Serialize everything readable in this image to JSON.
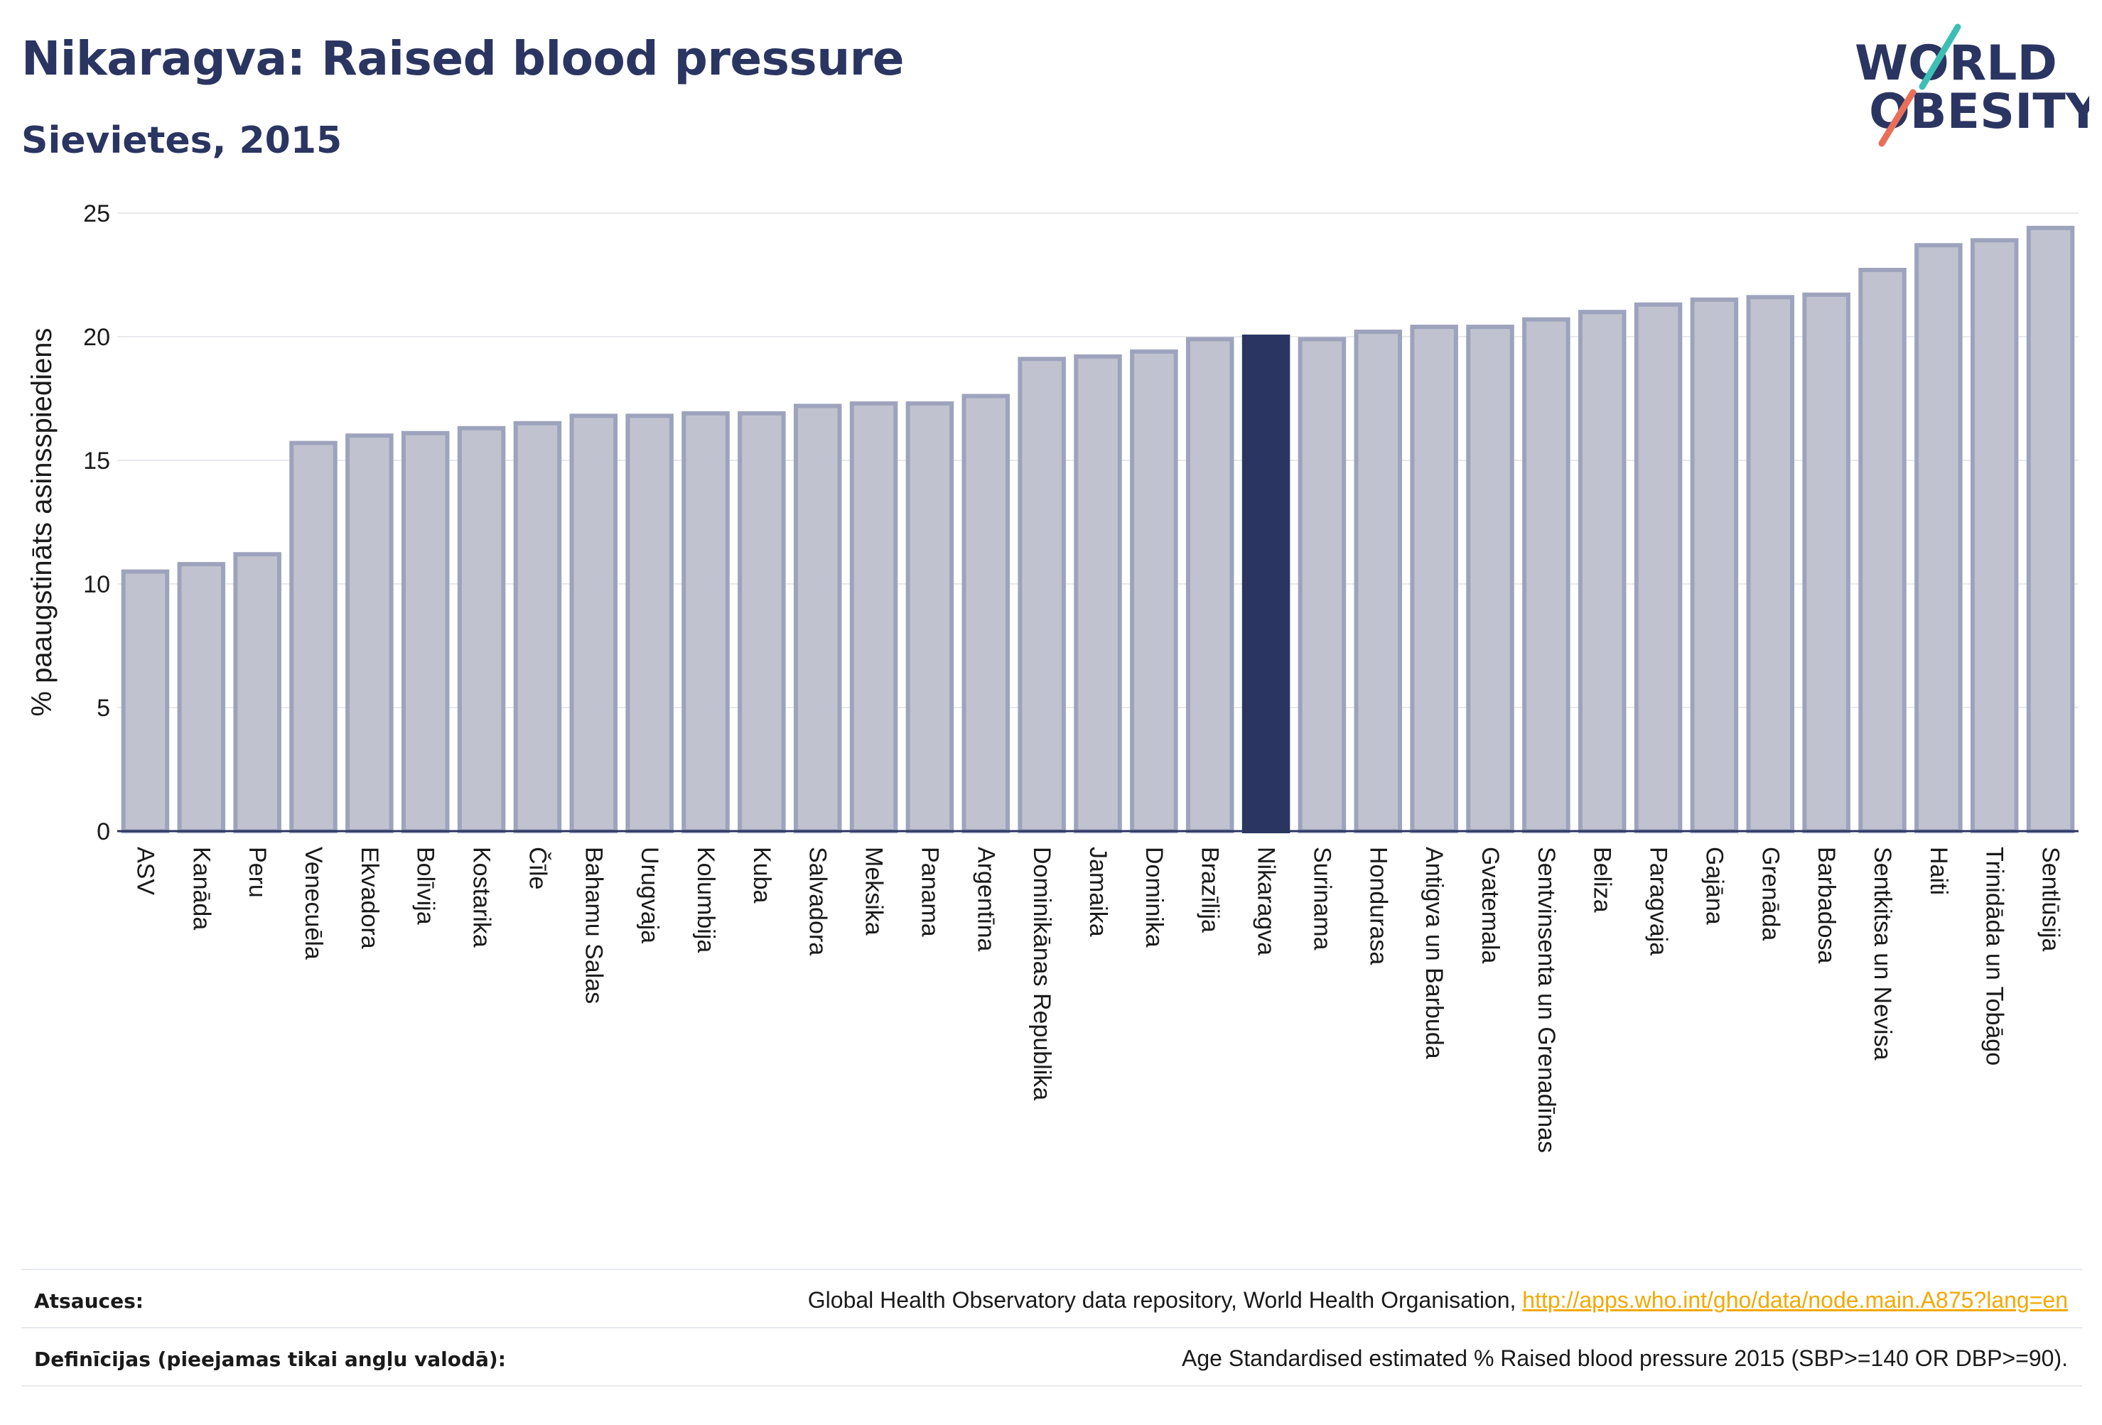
{
  "header": {
    "title": "Nikaragva: Raised blood pressure",
    "subtitle": "Sievietes, 2015"
  },
  "logo": {
    "line1": "WORLD",
    "line2": "OBESITY"
  },
  "footer": {
    "sources_label": "Atsauces:",
    "sources_text": "Global Health Observatory data repository, World Health Organisation, ",
    "sources_link": "http://apps.who.int/gho/data/node.main.A875?lang=en",
    "definitions_label": "Definīcijas (pieejamas tikai angļu valodā):",
    "definitions_text": "Age Standardised estimated % Raised blood pressure 2015 (SBP>=140 OR DBP>=90)."
  },
  "colors": {
    "bar_fill": "#c0c3cf",
    "bar_stroke": "#9ea3bd",
    "highlight": "#2b3561",
    "grid": "#e8e9ee",
    "accent_teal": "#3cbfb4",
    "accent_coral": "#e8705a"
  },
  "chart_data": {
    "type": "bar",
    "ylabel": "% paaugstināts asinsspiediens",
    "ylim": [
      0,
      25
    ],
    "yticks": [
      0,
      5,
      10,
      15,
      20,
      25
    ],
    "grid": true,
    "highlight": "Nikaragva",
    "categories": [
      "ASV",
      "Kanāda",
      "Peru",
      "Venecuēla",
      "Ekvadora",
      "Bolīvija",
      "Kostarika",
      "Čīle",
      "Bahamu Salas",
      "Urugvaja",
      "Kolumbija",
      "Kuba",
      "Salvadora",
      "Meksika",
      "Panama",
      "Argentīna",
      "Dominikānas Republika",
      "Jamaika",
      "Dominika",
      "Brazīlija",
      "Nikaragva",
      "Surinama",
      "Hondurasa",
      "Antigva un Barbuda",
      "Gvatemala",
      "Sentvinsenta un Grenadīnas",
      "Beliza",
      "Paragvaja",
      "Gajāna",
      "Grenāda",
      "Barbadosa",
      "Sentkitsa un Nevisa",
      "Haiti",
      "Trinidāda un Tobāgo",
      "Sentlūsija"
    ],
    "values": [
      10.5,
      10.8,
      11.2,
      15.7,
      16.0,
      16.1,
      16.3,
      16.5,
      16.8,
      16.8,
      16.9,
      16.9,
      17.2,
      17.3,
      17.3,
      17.6,
      19.1,
      19.2,
      19.4,
      19.9,
      20.0,
      19.9,
      20.2,
      20.4,
      20.4,
      20.7,
      21.0,
      21.3,
      21.5,
      21.6,
      21.7,
      22.7,
      23.7,
      23.9,
      24.4
    ]
  }
}
